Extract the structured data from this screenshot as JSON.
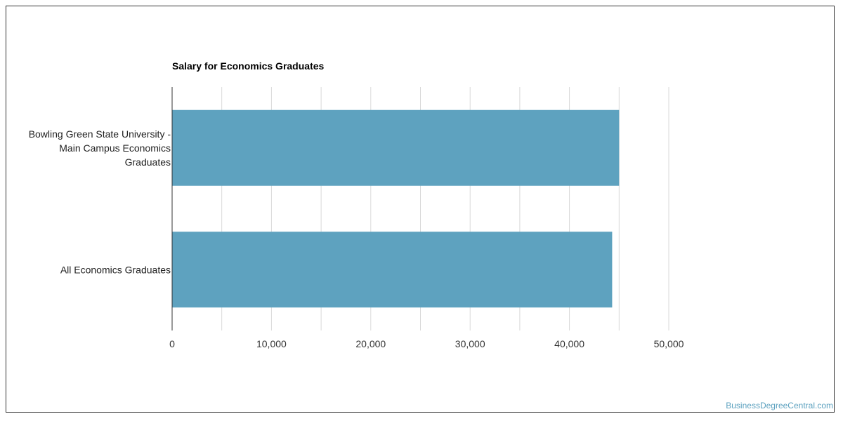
{
  "chart_data": {
    "type": "bar",
    "orientation": "horizontal",
    "title": "Salary for Economics Graduates",
    "xlabel": "",
    "ylabel": "",
    "categories": [
      "Bowling Green State University - Main Campus Economics Graduates",
      "All Economics Graduates"
    ],
    "category_label_lines": [
      [
        "Bowling Green State University -",
        "Main Campus Economics",
        "Graduates"
      ],
      [
        "All Economics Graduates"
      ]
    ],
    "values": [
      45000,
      44300
    ],
    "xlim": [
      0,
      50000
    ],
    "xticks": [
      0,
      10000,
      20000,
      30000,
      40000,
      50000
    ],
    "xtick_labels": [
      "0",
      "10,000",
      "20,000",
      "30,000",
      "40,000",
      "50,000"
    ],
    "grid": true,
    "bar_color": "#5ea2bf",
    "grid_color": "#d9d9d9",
    "axis_color": "#333333"
  },
  "watermark": "BusinessDegreeCentral.com"
}
